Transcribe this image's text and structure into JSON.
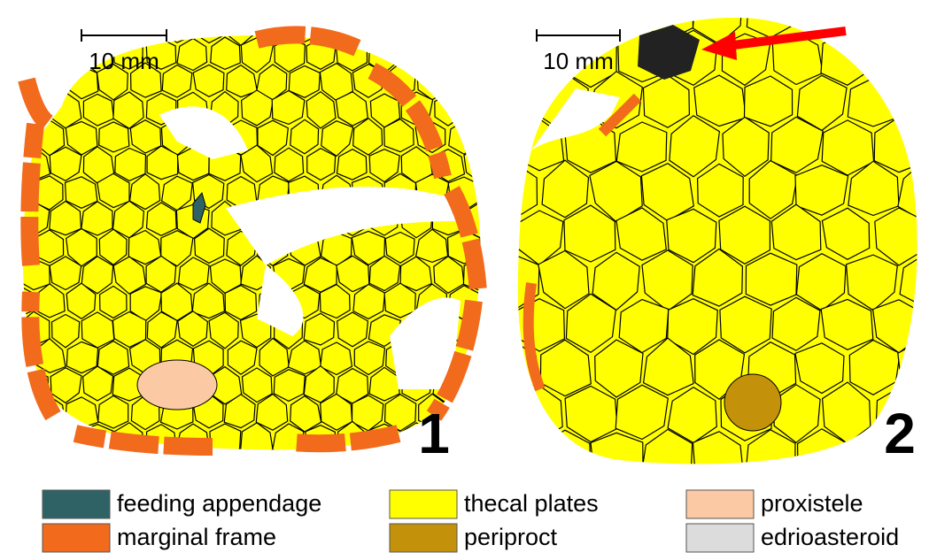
{
  "panels": [
    {
      "label": "1",
      "scale": "10 mm"
    },
    {
      "label": "2",
      "scale": "10 mm"
    }
  ],
  "legend": [
    {
      "label": "feeding appendage",
      "color": "#2f6265"
    },
    {
      "label": "marginal frame",
      "color": "#f26a1b"
    },
    {
      "label": "thecal plates",
      "color": "#ffff00"
    },
    {
      "label": "periproct",
      "color": "#c4920a"
    },
    {
      "label": "proxistele",
      "color": "#fbc9a3"
    },
    {
      "label": "edrioasteroid",
      "color": "#dcdcdc"
    }
  ]
}
